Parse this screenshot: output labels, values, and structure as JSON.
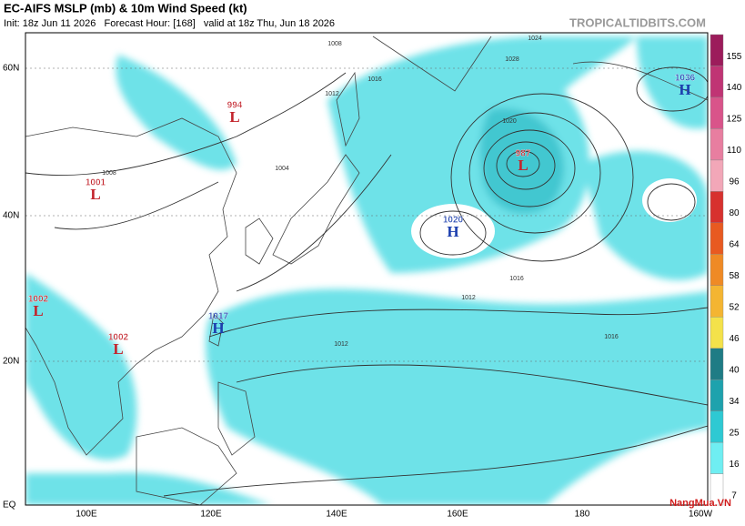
{
  "header": {
    "title": "EC-AIFS MSLP (mb) & 10m Wind Speed (kt)",
    "info": "Init: 18z Jun 11 2026   Forecast Hour: [168]   valid at 18z Thu, Jun 18 2026",
    "credit": "TROPICALTIDBITS.COM"
  },
  "map": {
    "lat_labels": [
      "60N",
      "40N",
      "20N",
      "EQ"
    ],
    "lon_labels": [
      "100E",
      "120E",
      "140E",
      "160E",
      "180",
      "160W"
    ],
    "centers": [
      {
        "letter": "L",
        "pressure": "994"
      },
      {
        "letter": "L",
        "pressure": "1001"
      },
      {
        "letter": "L",
        "pressure": "1002"
      },
      {
        "letter": "L",
        "pressure": "1002"
      },
      {
        "letter": "H",
        "pressure": "1017"
      },
      {
        "letter": "H",
        "pressure": "1020"
      },
      {
        "letter": "L",
        "pressure": "987"
      },
      {
        "letter": "H",
        "pressure": "1036"
      }
    ],
    "isobar_labels": [
      "1008",
      "1012",
      "1016",
      "1020",
      "1024",
      "1028",
      "1016",
      "1012",
      "1012",
      "1016",
      "1004",
      "1008"
    ]
  },
  "colorbar": {
    "ticks": [
      7,
      16,
      25,
      34,
      40,
      46,
      52,
      58,
      64,
      80,
      96,
      110,
      125,
      140,
      155
    ]
  },
  "watermark": "NangMua.VN"
}
